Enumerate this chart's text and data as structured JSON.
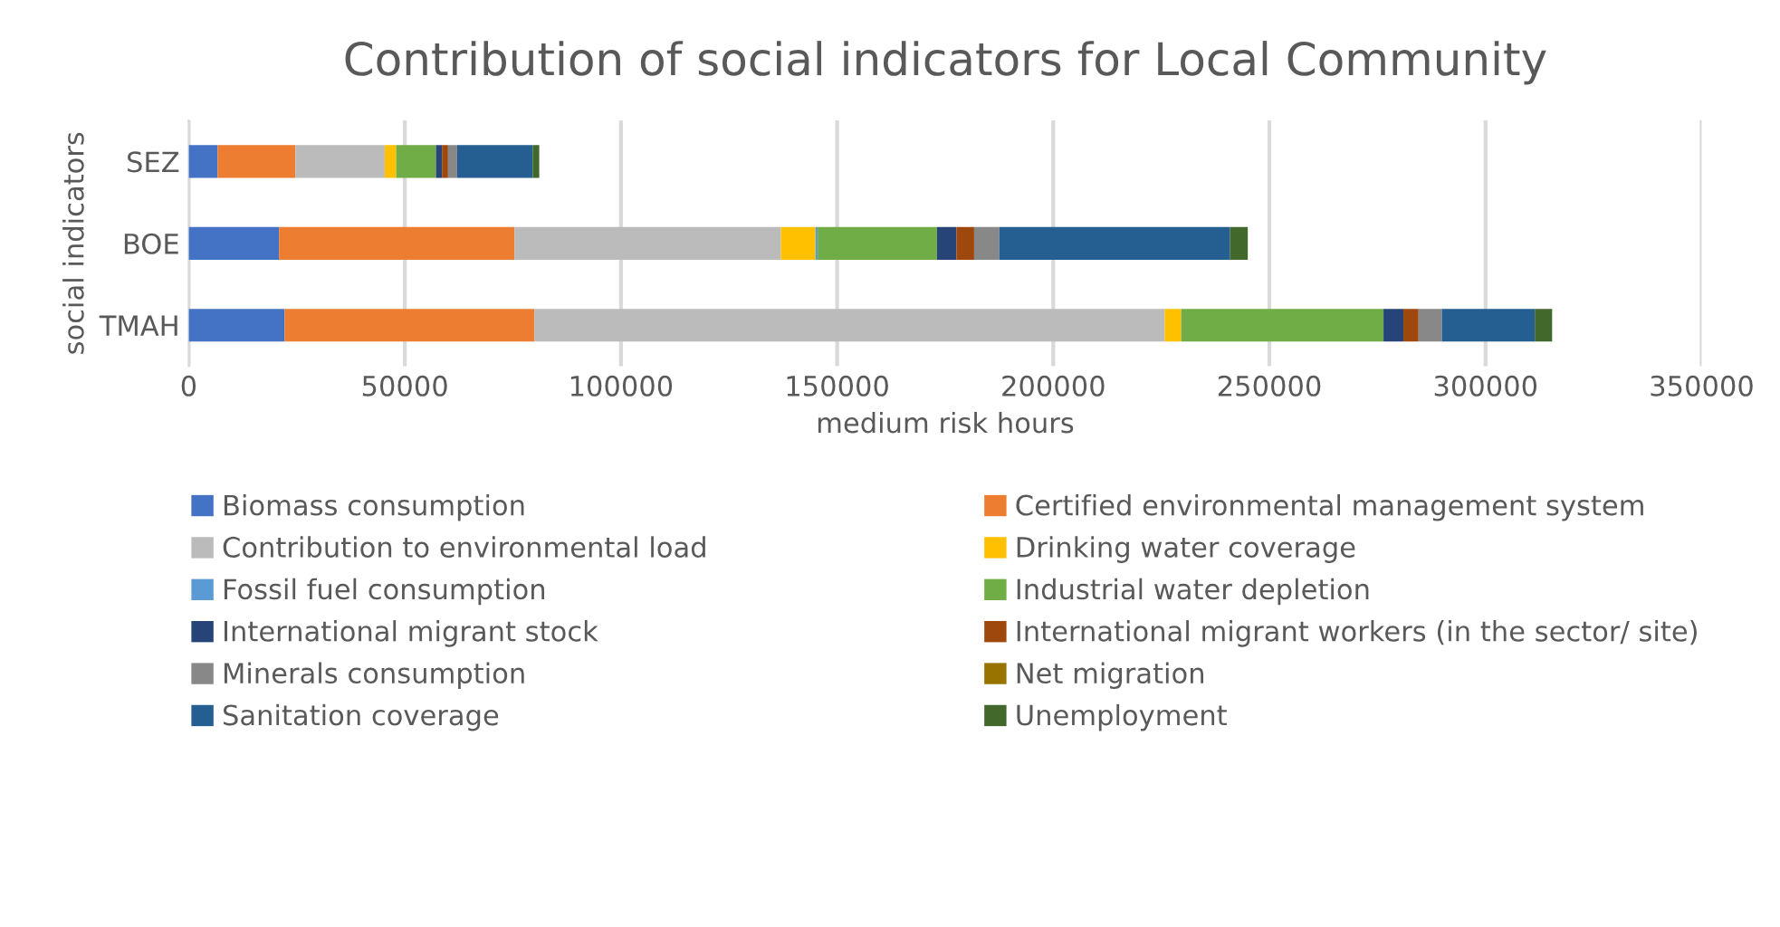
{
  "chart_data": {
    "type": "bar",
    "orientation": "horizontal",
    "stacked": true,
    "title": "Contribution of social indicators for Local Community",
    "xlabel": "medium risk hours",
    "ylabel": "social indicators",
    "categories": [
      "SEZ",
      "BOE",
      "TMAH"
    ],
    "series": [
      {
        "name": "Biomass consumption",
        "color": "#4472c4",
        "values": [
          6700,
          20900,
          22200
        ]
      },
      {
        "name": "Certified environmental management system",
        "color": "#ed7d31",
        "values": [
          18000,
          54500,
          57800
        ]
      },
      {
        "name": "Contribution to environmental load",
        "color": "#bbbbbb",
        "values": [
          20650,
          61600,
          145800
        ]
      },
      {
        "name": "Drinking water coverage",
        "color": "#ffc000",
        "values": [
          2650,
          8000,
          3800
        ]
      },
      {
        "name": "Fossil fuel consumption",
        "color": "#5b9bd5",
        "values": [
          0,
          500,
          0
        ]
      },
      {
        "name": "Industrial water depletion",
        "color": "#70ad47",
        "values": [
          9200,
          27600,
          46800
        ]
      },
      {
        "name": "International migrant stock",
        "color": "#264478",
        "values": [
          1400,
          4500,
          4600
        ]
      },
      {
        "name": "International migrant workers (in the sector/ site)",
        "color": "#9e480e",
        "values": [
          1400,
          4100,
          3500
        ]
      },
      {
        "name": "Minerals consumption",
        "color": "#888888",
        "values": [
          2100,
          5800,
          5400
        ]
      },
      {
        "name": "Net migration",
        "color": "#997300",
        "values": [
          0,
          0,
          0
        ]
      },
      {
        "name": "Sanitation coverage",
        "color": "#255e91",
        "values": [
          17500,
          53400,
          21500
        ]
      },
      {
        "name": "Unemployment",
        "color": "#43682b",
        "values": [
          1500,
          4100,
          4000
        ]
      }
    ],
    "xlim": [
      0,
      350000
    ],
    "xticks": [
      0,
      50000,
      100000,
      150000,
      200000,
      250000,
      300000,
      350000
    ],
    "grid": "x",
    "legend": "bottom"
  }
}
